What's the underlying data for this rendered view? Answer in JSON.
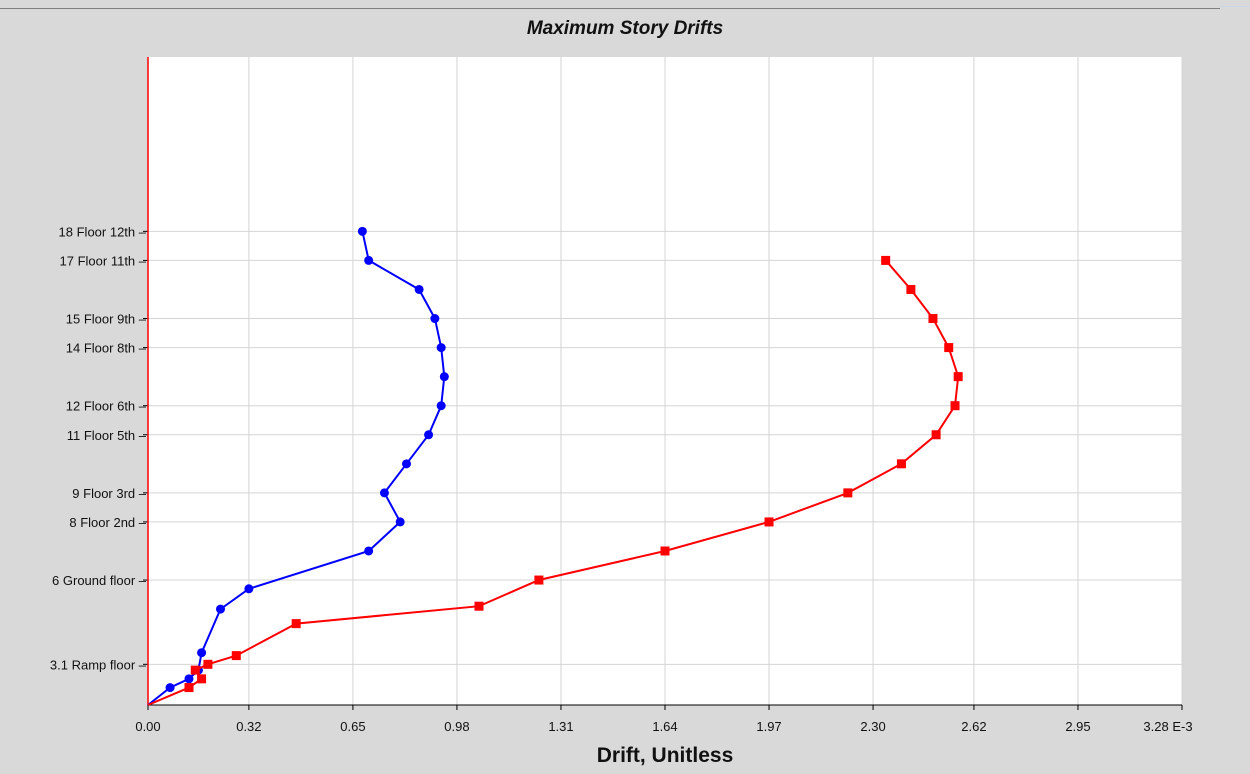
{
  "chart_data": {
    "type": "line",
    "title": "Maximum Story Drifts",
    "xlabel": "Drift, Unitless",
    "x_unit_label": "E-3",
    "xlim": [
      0,
      3.28
    ],
    "x_ticks": [
      "0.00",
      "0.32",
      "0.65",
      "0.98",
      "1.31",
      "1.64",
      "1.97",
      "2.30",
      "2.62",
      "2.95",
      "3.28"
    ],
    "y_tick_labels": [
      {
        "level": 18,
        "label": "18 Floor 12th"
      },
      {
        "level": 17,
        "label": "17 Floor 11th"
      },
      {
        "level": 15,
        "label": "15 Floor 9th"
      },
      {
        "level": 14,
        "label": "14 Floor 8th"
      },
      {
        "level": 12,
        "label": "12 Floor 6th"
      },
      {
        "level": 11,
        "label": "11 Floor 5th"
      },
      {
        "level": 9,
        "label": "9 Floor 3rd"
      },
      {
        "level": 8,
        "label": "8 Floor 2nd"
      },
      {
        "level": 6,
        "label": "6  Ground floor"
      },
      {
        "level": 3.1,
        "label": "3.1 Ramp floor"
      }
    ],
    "ylim": [
      1.7,
      24
    ],
    "grid": true,
    "series": [
      {
        "color": "#0000ff",
        "marker": "circle",
        "points": [
          [
            0.0,
            1.7
          ],
          [
            0.07,
            2.3
          ],
          [
            0.13,
            2.6
          ],
          [
            0.16,
            2.9
          ],
          [
            0.17,
            3.5
          ],
          [
            0.23,
            5.0
          ],
          [
            0.32,
            5.7
          ],
          [
            0.7,
            7.0
          ],
          [
            0.8,
            8.0
          ],
          [
            0.75,
            9.0
          ],
          [
            0.82,
            10.0
          ],
          [
            0.89,
            11.0
          ],
          [
            0.93,
            12.0
          ],
          [
            0.94,
            13.0
          ],
          [
            0.93,
            14.0
          ],
          [
            0.91,
            15.0
          ],
          [
            0.86,
            16.0
          ],
          [
            0.7,
            17.0
          ],
          [
            0.68,
            18.0
          ]
        ]
      },
      {
        "color": "#ff0000",
        "marker": "square",
        "points": [
          [
            0.0,
            1.7
          ],
          [
            0.13,
            2.3
          ],
          [
            0.17,
            2.6
          ],
          [
            0.15,
            2.9
          ],
          [
            0.19,
            3.1
          ],
          [
            0.28,
            3.4
          ],
          [
            0.47,
            4.5
          ],
          [
            1.05,
            5.1
          ],
          [
            1.24,
            6.0
          ],
          [
            1.64,
            7.0
          ],
          [
            1.97,
            8.0
          ],
          [
            2.22,
            9.0
          ],
          [
            2.39,
            10.0
          ],
          [
            2.5,
            11.0
          ],
          [
            2.56,
            12.0
          ],
          [
            2.57,
            13.0
          ],
          [
            2.54,
            14.0
          ],
          [
            2.49,
            15.0
          ],
          [
            2.42,
            16.0
          ],
          [
            2.34,
            17.0
          ]
        ]
      }
    ]
  }
}
